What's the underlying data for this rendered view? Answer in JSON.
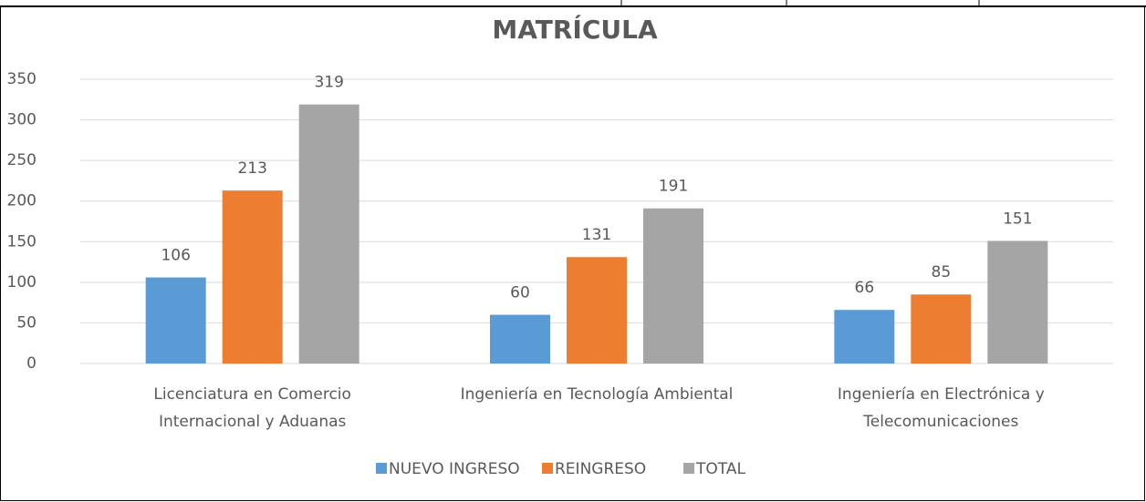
{
  "chart_data": {
    "type": "bar",
    "title": "MATRÍCULA",
    "categories": [
      "Licenciatura en Comercio\nInternacional y Aduanas",
      "Ingeniería en Tecnología Ambiental",
      "Ingeniería en Electrónica y\nTelecomunicaciones"
    ],
    "series": [
      {
        "name": "NUEVO INGRESO",
        "color": "#5b9bd5",
        "values": [
          106,
          60,
          66
        ]
      },
      {
        "name": "REINGRESO",
        "color": "#ed7d31",
        "values": [
          213,
          131,
          85
        ]
      },
      {
        "name": "TOTAL",
        "color": "#a5a5a5",
        "values": [
          319,
          191,
          151
        ]
      }
    ],
    "ylim": [
      0,
      350
    ],
    "yticks": [
      0,
      50,
      100,
      150,
      200,
      250,
      300,
      350
    ],
    "grid": true,
    "legend": "bottom"
  }
}
